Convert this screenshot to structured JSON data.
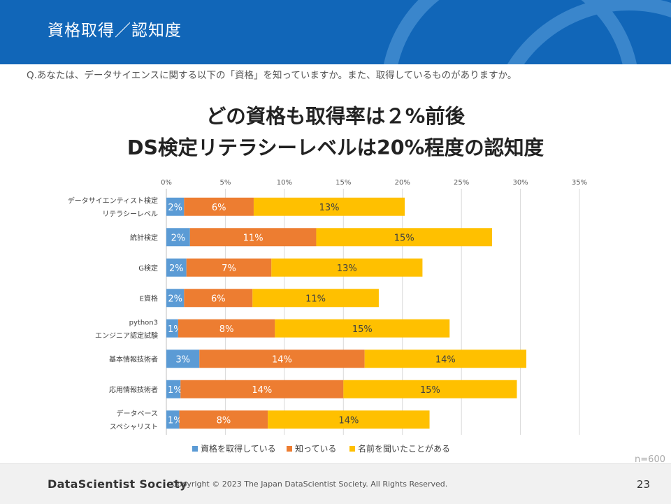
{
  "header": {
    "title": "資格取得／認知度"
  },
  "question": "Q.あなたは、データサイエンスに関する以下の「資格」を知っていますか。また、取得しているものがありますか。",
  "headline": {
    "line1": "どの資格も取得率は２%前後",
    "line2": "DS検定リテラシーレベルは20%程度の認知度"
  },
  "chart_data": {
    "type": "bar",
    "orientation": "horizontal",
    "stacked": true,
    "categories": [
      [
        "データサイエンティスト検定",
        "リテラシーレベル"
      ],
      [
        "統計検定"
      ],
      [
        "G検定"
      ],
      [
        "E資格"
      ],
      [
        "python3",
        "エンジニア認定試験"
      ],
      [
        "基本情報技術者"
      ],
      [
        "応用情報技術者"
      ],
      [
        "データベース",
        "スペシャリスト"
      ]
    ],
    "series": [
      {
        "name": "資格を取得している",
        "color": "#5b9bd5",
        "values": [
          1.5,
          2.0,
          1.7,
          1.5,
          1.0,
          2.8,
          1.2,
          1.1
        ],
        "labels": [
          "2%",
          "2%",
          "2%",
          "2%",
          "1%",
          "3%",
          "1%",
          "1%"
        ]
      },
      {
        "name": "知っている",
        "color": "#ed7d31",
        "values": [
          5.9,
          10.7,
          7.2,
          5.8,
          8.2,
          14.0,
          13.8,
          7.5
        ],
        "labels": [
          "6%",
          "11%",
          "7%",
          "6%",
          "8%",
          "14%",
          "14%",
          "8%"
        ]
      },
      {
        "name": "名前を聞いたことがある",
        "color": "#ffc000",
        "values": [
          12.8,
          14.9,
          12.8,
          10.7,
          14.8,
          13.7,
          14.7,
          13.7
        ],
        "labels": [
          "13%",
          "15%",
          "13%",
          "11%",
          "15%",
          "14%",
          "15%",
          "14%"
        ]
      }
    ],
    "x_ticks": [
      "0%",
      "5%",
      "10%",
      "15%",
      "20%",
      "25%",
      "30%",
      "35%"
    ],
    "xlim": [
      0,
      35
    ],
    "grid": true,
    "legend": "bottom"
  },
  "sample_size": "n=600",
  "footer": {
    "brand": "DataScientist Society",
    "copyright": "Copyright © 2023  The Japan DataScientist Society. All Rights Reserved.",
    "page": "23"
  }
}
